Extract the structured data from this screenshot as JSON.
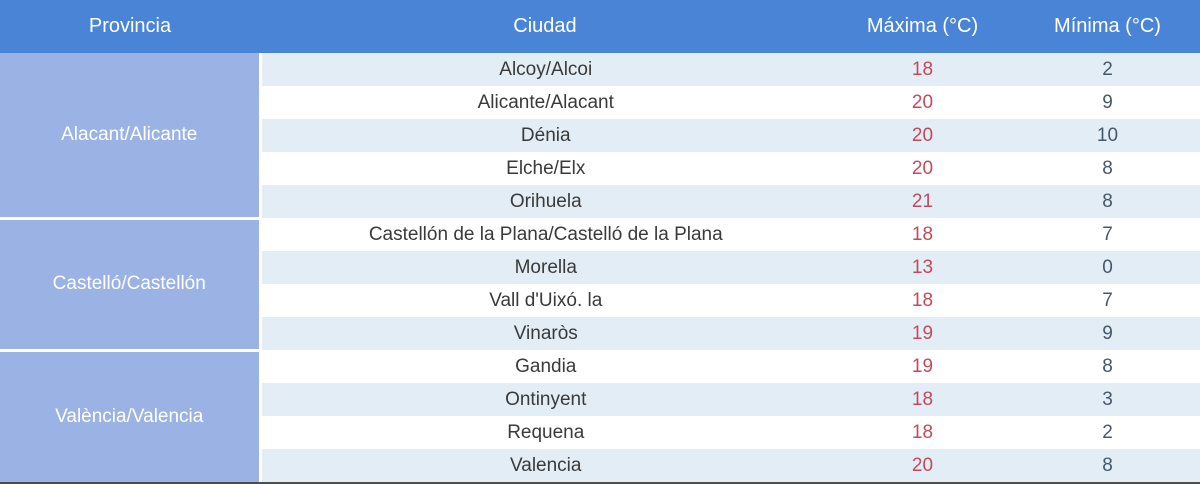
{
  "header": {
    "province": "Provincia",
    "city": "Ciudad",
    "max": "Máxima (°C)",
    "min": "Mínima (°C)"
  },
  "groups": [
    {
      "province": "Alacant/Alicante",
      "rows": [
        {
          "city": "Alcoy/Alcoi",
          "max": "18",
          "min": "2"
        },
        {
          "city": "Alicante/Alacant",
          "max": "20",
          "min": "9"
        },
        {
          "city": "Dénia",
          "max": "20",
          "min": "10"
        },
        {
          "city": "Elche/Elx",
          "max": "20",
          "min": "8"
        },
        {
          "city": "Orihuela",
          "max": "21",
          "min": "8"
        }
      ]
    },
    {
      "province": "Castelló/Castellón",
      "rows": [
        {
          "city": "Castellón de la Plana/Castelló de la Plana",
          "max": "18",
          "min": "7"
        },
        {
          "city": "Morella",
          "max": "13",
          "min": "0"
        },
        {
          "city": "Vall d'Uixó. la",
          "max": "18",
          "min": "7"
        },
        {
          "city": "Vinaròs",
          "max": "19",
          "min": "9"
        }
      ]
    },
    {
      "province": "València/Valencia",
      "rows": [
        {
          "city": "Gandia",
          "max": "19",
          "min": "8"
        },
        {
          "city": "Ontinyent",
          "max": "18",
          "min": "3"
        },
        {
          "city": "Requena",
          "max": "18",
          "min": "2"
        },
        {
          "city": "Valencia",
          "max": "20",
          "min": "8"
        }
      ]
    }
  ],
  "colors": {
    "header_bg": "#4a84d7",
    "header_text": "#ffffff",
    "province_bg": "#9ab3e4",
    "row_light_bg": "#e3edf5",
    "row_white_bg": "#ffffff",
    "city_text": "#3a3a3a",
    "max_text": "#c44a5a",
    "min_text": "#46586b",
    "bottom_border": "#4d4d4d"
  },
  "chart_data": {
    "type": "table",
    "title": "Temperaturas por ciudad (Máxima / Mínima °C)",
    "columns": [
      "Provincia",
      "Ciudad",
      "Máxima (°C)",
      "Mínima (°C)"
    ],
    "rows": [
      [
        "Alacant/Alicante",
        "Alcoy/Alcoi",
        18,
        2
      ],
      [
        "Alacant/Alicante",
        "Alicante/Alacant",
        20,
        9
      ],
      [
        "Alacant/Alicante",
        "Dénia",
        20,
        10
      ],
      [
        "Alacant/Alicante",
        "Elche/Elx",
        20,
        8
      ],
      [
        "Alacant/Alicante",
        "Orihuela",
        21,
        8
      ],
      [
        "Castelló/Castellón",
        "Castellón de la Plana/Castelló de la Plana",
        18,
        7
      ],
      [
        "Castelló/Castellón",
        "Morella",
        13,
        0
      ],
      [
        "Castelló/Castellón",
        "Vall d'Uixó. la",
        18,
        7
      ],
      [
        "Castelló/Castellón",
        "Vinaròs",
        19,
        9
      ],
      [
        "València/Valencia",
        "Gandia",
        19,
        8
      ],
      [
        "València/Valencia",
        "Ontinyent",
        18,
        3
      ],
      [
        "València/Valencia",
        "Requena",
        18,
        2
      ],
      [
        "València/Valencia",
        "Valencia",
        20,
        8
      ]
    ]
  }
}
